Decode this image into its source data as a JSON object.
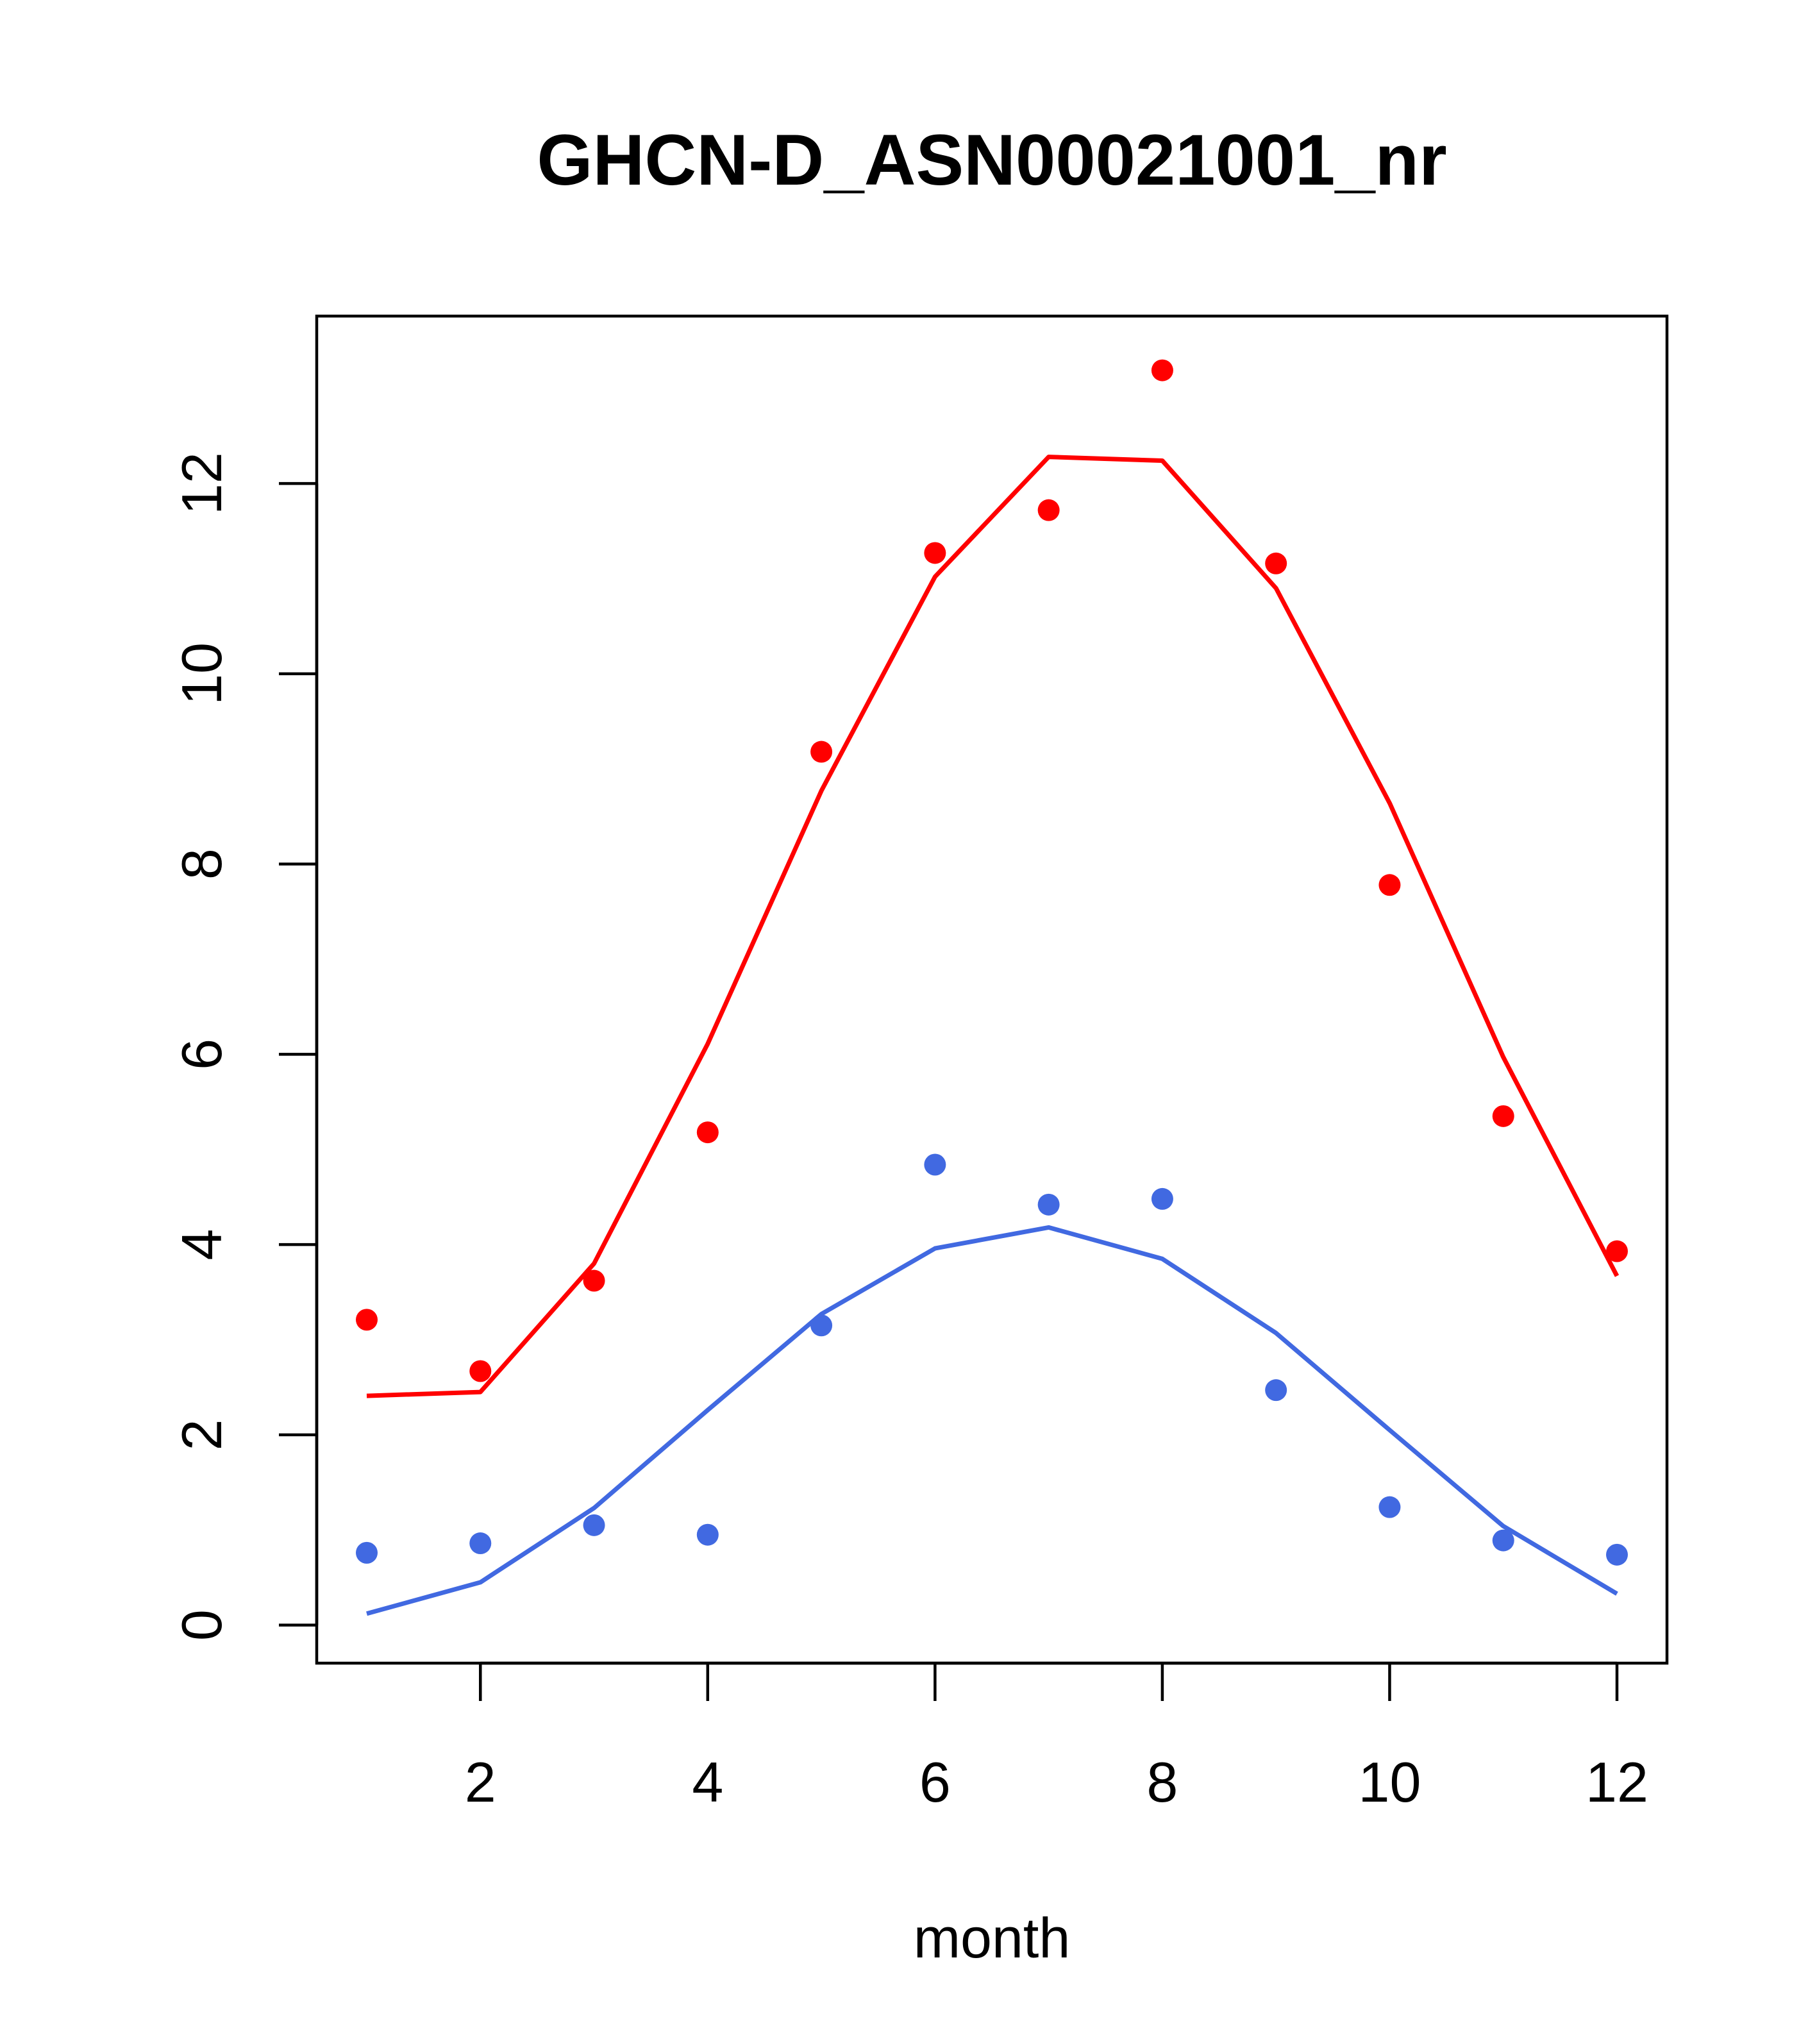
{
  "chart_data": {
    "type": "scatter",
    "title": "GHCN-D_ASN00021001_nr",
    "xlabel": "month",
    "ylabel": "",
    "xlim": [
      0.56,
      12.44
    ],
    "ylim": [
      -0.4,
      13.76
    ],
    "x_ticks": [
      2,
      4,
      6,
      8,
      10,
      12
    ],
    "y_ticks": [
      0,
      2,
      4,
      6,
      8,
      10,
      12
    ],
    "grid": false,
    "legend": "none",
    "x": [
      1,
      2,
      3,
      4,
      5,
      6,
      7,
      8,
      9,
      10,
      11,
      12
    ],
    "series": [
      {
        "color": "#ff0000",
        "points": [
          3.21,
          2.67,
          3.62,
          5.18,
          9.18,
          11.27,
          11.72,
          13.19,
          11.16,
          7.78,
          5.35,
          3.93
        ],
        "line": [
          2.41,
          2.45,
          3.8,
          6.11,
          8.77,
          11.02,
          12.28,
          12.24,
          10.9,
          8.64,
          5.97,
          3.67
        ]
      },
      {
        "color": "#4169e1",
        "points": [
          0.76,
          0.86,
          1.05,
          0.95,
          3.15,
          4.84,
          4.42,
          4.48,
          2.47,
          1.24,
          0.89,
          0.74
        ],
        "line": [
          0.12,
          0.45,
          1.23,
          2.26,
          3.27,
          3.96,
          4.18,
          3.85,
          3.07,
          2.05,
          1.04,
          0.33
        ]
      }
    ]
  }
}
